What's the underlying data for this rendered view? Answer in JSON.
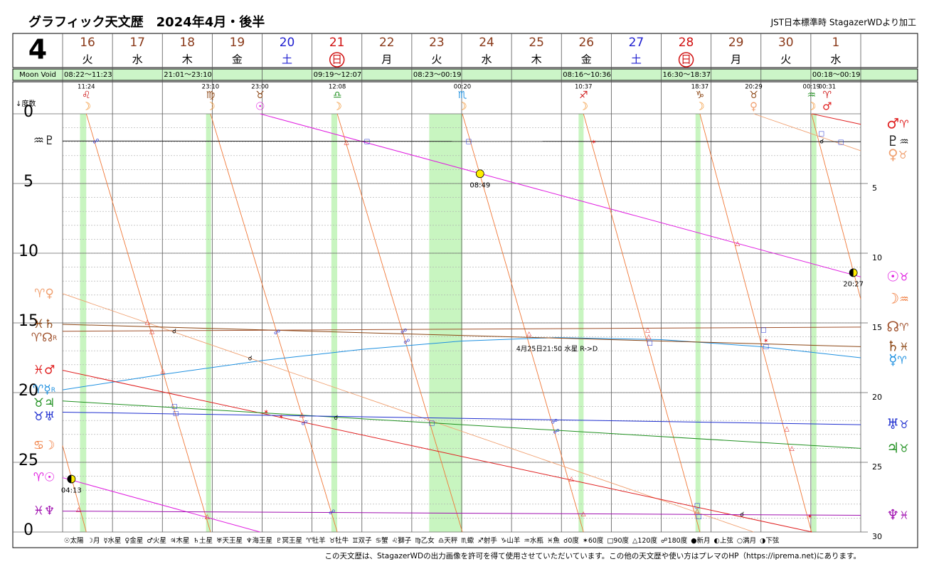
{
  "chart_data": {
    "type": "line",
    "title": "グラフィック天文歴　2024年4月・後半",
    "source_note": "JST日本標準時 StagazerWDより加工",
    "month": "4",
    "moon_void_label": "Moon Void",
    "axis_label": "↓度数",
    "footer": "この天文歴は、StagazerWDの出力画像を許可を得て使用させていただいています。この他の天文歴や使い方はプレマのHP（https://iprema.net)にあります。",
    "days": [
      {
        "date": "16",
        "weekday": "火",
        "color": "#8a3a1a",
        "circled": false
      },
      {
        "date": "17",
        "weekday": "水",
        "color": "#8a3a1a",
        "circled": false
      },
      {
        "date": "18",
        "weekday": "木",
        "color": "#8a3a1a",
        "circled": false
      },
      {
        "date": "19",
        "weekday": "金",
        "color": "#8a3a1a",
        "circled": false
      },
      {
        "date": "20",
        "weekday": "土",
        "color": "#2020d0",
        "circled": false
      },
      {
        "date": "21",
        "weekday": "日",
        "color": "#d01010",
        "circled": true
      },
      {
        "date": "22",
        "weekday": "月",
        "color": "#8a3a1a",
        "circled": false
      },
      {
        "date": "23",
        "weekday": "火",
        "color": "#8a3a1a",
        "circled": false
      },
      {
        "date": "24",
        "weekday": "水",
        "color": "#8a3a1a",
        "circled": false
      },
      {
        "date": "25",
        "weekday": "木",
        "color": "#8a3a1a",
        "circled": false
      },
      {
        "date": "26",
        "weekday": "金",
        "color": "#8a3a1a",
        "circled": false
      },
      {
        "date": "27",
        "weekday": "土",
        "color": "#2020d0",
        "circled": false
      },
      {
        "date": "28",
        "weekday": "日",
        "color": "#d01010",
        "circled": true
      },
      {
        "date": "29",
        "weekday": "月",
        "color": "#8a3a1a",
        "circled": false
      },
      {
        "date": "30",
        "weekday": "火",
        "color": "#8a3a1a",
        "circled": false
      },
      {
        "date": "1",
        "weekday": "水",
        "color": "#8a3a1a",
        "circled": false
      }
    ],
    "moon_void": [
      {
        "label": "08:22〜11:23",
        "start": 0.349,
        "end": 0.474
      },
      {
        "label": "21:01〜23:10",
        "start": 2.876,
        "end": 2.965
      },
      {
        "label": "09:19〜12:07",
        "start": 5.388,
        "end": 5.505
      },
      {
        "label": "08:23〜00:19",
        "start": 7.349,
        "end": 8.013
      },
      {
        "label": "08:16〜10:36",
        "start": 10.344,
        "end": 10.442
      },
      {
        "label": "16:30〜18:37",
        "start": 12.688,
        "end": 12.776
      },
      {
        "label": "00:18〜00:19",
        "start": 15.0125,
        "end": 15.013
      }
    ],
    "ingresses": [
      {
        "time": "11:24",
        "sign": "♌",
        "planet": "☽",
        "day": 0.475,
        "sign_color": "#d02020",
        "planet_color": "#f08a20"
      },
      {
        "time": "23:10",
        "sign": "♍",
        "planet": "☽",
        "day": 2.965,
        "sign_color": "#8b4513",
        "planet_color": "#f08a20"
      },
      {
        "time": "23:00",
        "sign": "♉",
        "planet": "☉",
        "day": 3.958,
        "sign_color": "#8b4513",
        "planet_color": "#e020e0"
      },
      {
        "time": "12:08",
        "sign": "♎",
        "planet": "☽",
        "day": 5.506,
        "sign_color": "#209020",
        "planet_color": "#f08a20"
      },
      {
        "time": "00:20",
        "sign": "♏",
        "planet": "☽",
        "day": 8.014,
        "sign_color": "#1e90e0",
        "planet_color": "#f08a20"
      },
      {
        "time": "10:37",
        "sign": "♐",
        "planet": "☽",
        "day": 10.442,
        "sign_color": "#d02020",
        "planet_color": "#f08a20"
      },
      {
        "time": "18:37",
        "sign": "♑",
        "planet": "☽",
        "day": 12.776,
        "sign_color": "#8b4513",
        "planet_color": "#f08a20"
      },
      {
        "time": "20:29",
        "sign": "♉",
        "planet": "♀",
        "day": 13.854,
        "sign_color": "#8b4513",
        "planet_color": "#f0a070"
      },
      {
        "time": "00:19",
        "sign": "♒",
        "planet": "☽",
        "day": 15.013,
        "sign_color": "#209020",
        "planet_color": "#f08a20"
      },
      {
        "time": "00:31",
        "sign": "♈",
        "planet": "♂",
        "day": 15.022,
        "sign_color": "#d02020",
        "planet_color": "#e02020"
      }
    ],
    "xlim": [
      0,
      16
    ],
    "ylim": [
      0,
      30
    ],
    "yticks": [
      0,
      5,
      10,
      15,
      20,
      25,
      {
        "value": 30,
        "label": "0"
      }
    ],
    "y2lim": [
      0,
      30
    ],
    "y2ticks": [
      5,
      10,
      15,
      20,
      25,
      30
    ],
    "series": [
      {
        "name": "☉",
        "color": "#e020e0",
        "sign_start": "♈",
        "sign_end": "♉",
        "x": [
          0,
          3.958,
          null,
          3.958,
          16
        ],
        "values": [
          26.1,
          30,
          null,
          0,
          11.7
        ]
      },
      {
        "name": "☽",
        "color": "#f07838",
        "sign_start": "♋",
        "sign_end": "♒",
        "x": [
          0,
          0.475,
          null,
          0.475,
          2.965,
          null,
          2.965,
          5.506,
          null,
          5.506,
          8.014,
          null,
          8.014,
          10.442,
          null,
          10.442,
          12.776,
          null,
          12.776,
          15.013,
          null,
          15.013,
          16
        ],
        "values": [
          23.8,
          30,
          null,
          0,
          30,
          null,
          0,
          30,
          null,
          0,
          30,
          null,
          0,
          30,
          null,
          0,
          30,
          null,
          0,
          30,
          null,
          0,
          13.3
        ]
      },
      {
        "name": "☿",
        "color": "#1e90e0",
        "sign_start": "♈",
        "sign_end": "♈",
        "retro": "R",
        "x": [
          0,
          2,
          4,
          6,
          8,
          9.9,
          12,
          14,
          16
        ],
        "values": [
          19.8,
          18.7,
          17.7,
          16.9,
          16.3,
          16.05,
          16.2,
          16.7,
          17.5
        ]
      },
      {
        "name": "♀",
        "color": "#f0a070",
        "sign_start": "♈",
        "sign_end": "♉",
        "x": [
          0,
          13.854,
          null,
          13.854,
          16
        ],
        "values": [
          12.9,
          30,
          null,
          0,
          2.65
        ]
      },
      {
        "name": "♂",
        "color": "#e02020",
        "sign_start": "♓",
        "sign_end": "♈",
        "x": [
          0,
          15.022,
          null,
          15.022,
          16
        ],
        "values": [
          18.4,
          30,
          null,
          0,
          0.75
        ]
      },
      {
        "name": "♃",
        "color": "#209020",
        "sign_start": "♉",
        "sign_end": "♉",
        "x": [
          0,
          16
        ],
        "values": [
          20.6,
          24.0
        ]
      },
      {
        "name": "♄",
        "color": "#8b4513",
        "sign_start": "♓",
        "sign_end": "♓",
        "x": [
          0,
          16
        ],
        "values": [
          15.1,
          16.7
        ]
      },
      {
        "name": "♅",
        "color": "#2030d0",
        "sign_start": "♉",
        "sign_end": "♉",
        "x": [
          0,
          16
        ],
        "values": [
          21.4,
          22.3
        ]
      },
      {
        "name": "♆",
        "color": "#a010b0",
        "sign_start": "♓",
        "sign_end": "♓",
        "x": [
          0,
          16
        ],
        "values": [
          28.5,
          28.8
        ]
      },
      {
        "name": "♇",
        "color": "#202020",
        "sign_start": "♒",
        "sign_end": "♒",
        "x": [
          0,
          16
        ],
        "values": [
          1.95,
          2.0
        ]
      },
      {
        "name": "☊",
        "color": "#a0522d",
        "sign_start": "♈",
        "sign_end": "♈",
        "retro": "R",
        "x": [
          0,
          16
        ],
        "values": [
          15.6,
          15.3
        ]
      }
    ],
    "aspects": [
      {
        "symbol": "☍",
        "day": 0.67,
        "deg": 2.0,
        "color": "#2030d0"
      },
      {
        "symbol": "△",
        "day": 5.69,
        "deg": 2.05,
        "color": "#e02020"
      },
      {
        "symbol": "□",
        "day": 6.1,
        "deg": 2.0,
        "color": "#2030d0"
      },
      {
        "symbol": "□",
        "day": 8.14,
        "deg": 2.0,
        "color": "#2030d0"
      },
      {
        "symbol": "✶",
        "day": 10.65,
        "deg": 2.05,
        "color": "#e02020"
      },
      {
        "symbol": "□",
        "day": 15.21,
        "deg": 1.43,
        "color": "#2030d0"
      },
      {
        "symbol": "☌",
        "day": 15.22,
        "deg": 2.0,
        "color": "#000000"
      },
      {
        "symbol": "□",
        "day": 15.6,
        "deg": 2.05,
        "color": "#2030d0"
      },
      {
        "symbol": "△",
        "day": 1.7,
        "deg": 14.95,
        "color": "#e02020"
      },
      {
        "symbol": "△",
        "day": 1.79,
        "deg": 15.6,
        "color": "#e02020"
      },
      {
        "symbol": "☌",
        "day": 2.24,
        "deg": 15.6,
        "color": "#000000"
      },
      {
        "symbol": "△",
        "day": 2.01,
        "deg": 18.47,
        "color": "#e02020"
      },
      {
        "symbol": "□",
        "day": 2.24,
        "deg": 21.0,
        "color": "#2030d0"
      },
      {
        "symbol": "□",
        "day": 2.27,
        "deg": 21.5,
        "color": "#2030d0"
      },
      {
        "symbol": "☌",
        "day": 3.76,
        "deg": 17.55,
        "color": "#000000"
      },
      {
        "symbol": "☍",
        "day": 4.3,
        "deg": 15.7,
        "color": "#2030d0"
      },
      {
        "symbol": "☍",
        "day": 6.84,
        "deg": 15.6,
        "color": "#2030d0"
      },
      {
        "symbol": "☍",
        "day": 6.9,
        "deg": 16.35,
        "color": "#2030d0"
      },
      {
        "symbol": "✶",
        "day": 4.08,
        "deg": 21.4,
        "color": "#e02020"
      },
      {
        "symbol": "✶",
        "day": 4.38,
        "deg": 21.75,
        "color": "#e02020"
      },
      {
        "symbol": "△",
        "day": 4.8,
        "deg": 21.6,
        "color": "#e02020"
      },
      {
        "symbol": "☍",
        "day": 4.85,
        "deg": 22.2,
        "color": "#2030d0"
      },
      {
        "symbol": "☌",
        "day": 5.48,
        "deg": 21.8,
        "color": "#000000"
      },
      {
        "symbol": "□",
        "day": 7.4,
        "deg": 22.2,
        "color": "#2030d0"
      },
      {
        "symbol": "☍",
        "day": 9.86,
        "deg": 22.1,
        "color": "#2030d0"
      },
      {
        "symbol": "☍",
        "day": 9.9,
        "deg": 22.8,
        "color": "#2030d0"
      },
      {
        "symbol": "△",
        "day": 9.35,
        "deg": 15.8,
        "color": "#e02020"
      },
      {
        "symbol": "△",
        "day": 11.73,
        "deg": 15.5,
        "color": "#e02020"
      },
      {
        "symbol": "△",
        "day": 11.75,
        "deg": 16.0,
        "color": "#e02020"
      },
      {
        "symbol": "□",
        "day": 11.77,
        "deg": 16.45,
        "color": "#2030d0"
      },
      {
        "symbol": "□",
        "day": 14.05,
        "deg": 15.5,
        "color": "#2030d0"
      },
      {
        "symbol": "✶",
        "day": 14.1,
        "deg": 16.3,
        "color": "#e02020"
      },
      {
        "symbol": "□",
        "day": 14.1,
        "deg": 16.7,
        "color": "#2030d0"
      },
      {
        "symbol": "△",
        "day": 13.53,
        "deg": 9.3,
        "color": "#e02020"
      },
      {
        "symbol": "△",
        "day": 14.52,
        "deg": 22.6,
        "color": "#e02020"
      },
      {
        "symbol": "△",
        "day": 14.62,
        "deg": 24.0,
        "color": "#e02020"
      },
      {
        "symbol": "△",
        "day": 10.2,
        "deg": 26.2,
        "color": "#e02020"
      },
      {
        "symbol": "△",
        "day": 10.44,
        "deg": 28.7,
        "color": "#e02020"
      },
      {
        "symbol": "□",
        "day": 12.72,
        "deg": 28.1,
        "color": "#2030d0"
      },
      {
        "symbol": "△",
        "day": 12.72,
        "deg": 28.5,
        "color": "#e02020"
      },
      {
        "symbol": "□",
        "day": 12.75,
        "deg": 28.9,
        "color": "#2030d0"
      },
      {
        "symbol": "☌",
        "day": 13.62,
        "deg": 28.75,
        "color": "#000000"
      },
      {
        "symbol": "✶",
        "day": 14.98,
        "deg": 28.9,
        "color": "#e02020"
      },
      {
        "symbol": "△",
        "day": 0.32,
        "deg": 28.4,
        "color": "#e02020"
      },
      {
        "symbol": "△",
        "day": 2.9,
        "deg": 28.9,
        "color": "#e02020"
      },
      {
        "symbol": "☍",
        "day": 5.4,
        "deg": 28.6,
        "color": "#2030d0"
      }
    ],
    "phases": [
      {
        "time": "04:13",
        "day": 0.176,
        "deg": 26.2,
        "style": "quarter"
      },
      {
        "time": "08:49",
        "day": 8.368,
        "deg": 4.3,
        "style": "full"
      },
      {
        "time": "20:27",
        "day": 15.852,
        "deg": 11.4,
        "style": "quarter"
      }
    ],
    "annotation": {
      "text": "4月25日21:50 水星 R->D",
      "day": 9.91,
      "deg": 16.9
    },
    "legend": [
      "☉太陽",
      "☽月",
      "☿水星",
      "♀金星",
      "♂火星",
      "♃木星",
      "♄土星",
      "♅天王星",
      "♆海王星",
      "♇冥王星",
      "♈牡羊",
      "♉牡牛",
      "♊双子",
      "♋蟹",
      "♌獅子",
      "♍乙女",
      "♎天秤",
      "♏蠍",
      "♐射手",
      "♑山羊",
      "♒水瓶",
      "♓魚",
      "☌0度",
      "✶60度",
      "□90度",
      "△120度",
      "☍180度",
      "●新月",
      "◐上弦",
      "○満月",
      "◑下弦"
    ]
  }
}
